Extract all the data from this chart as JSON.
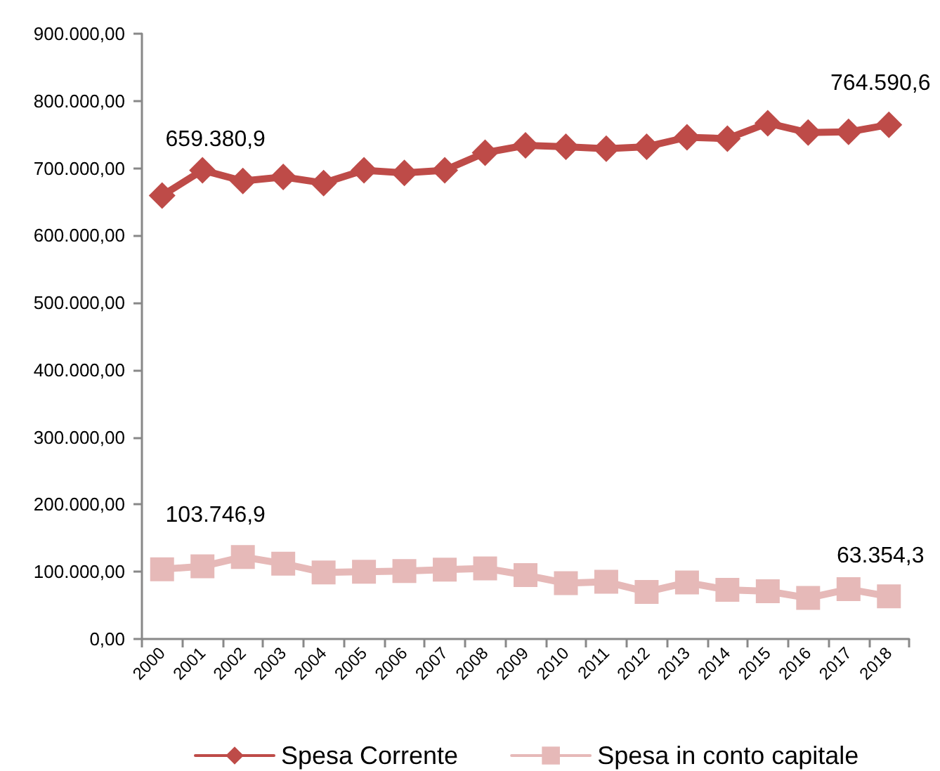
{
  "chart_data": {
    "type": "line",
    "categories": [
      "2000",
      "2001",
      "2002",
      "2003",
      "2004",
      "2005",
      "2006",
      "2007",
      "2008",
      "2009",
      "2010",
      "2011",
      "2012",
      "2013",
      "2014",
      "2015",
      "2016",
      "2017",
      "2018"
    ],
    "series": [
      {
        "name": "Spesa Corrente",
        "color": "#be4b48",
        "marker": "diamond",
        "values": [
          659380.9,
          697000,
          681000,
          687000,
          678000,
          697000,
          693000,
          697000,
          723000,
          734000,
          732000,
          729000,
          732000,
          746000,
          744000,
          767000,
          753000,
          754000,
          764590.6
        ],
        "value_labels": [
          "659.380,9",
          null,
          null,
          null,
          null,
          null,
          null,
          null,
          null,
          null,
          null,
          null,
          null,
          null,
          null,
          null,
          null,
          null,
          "764.590,6"
        ]
      },
      {
        "name": "Spesa in conto capitale",
        "color": "#e6b9b8",
        "marker": "square",
        "values": [
          103746.9,
          108000,
          122000,
          112000,
          99000,
          100000,
          101000,
          103000,
          105000,
          95000,
          83000,
          85000,
          70000,
          84000,
          73000,
          71000,
          61000,
          74000,
          63354.3
        ],
        "value_labels": [
          "103.746,9",
          null,
          null,
          null,
          null,
          null,
          null,
          null,
          null,
          null,
          null,
          null,
          null,
          null,
          null,
          null,
          null,
          null,
          "63.354,3"
        ]
      }
    ],
    "ylim": [
      0,
      900000
    ],
    "yticks": [
      {
        "value": 0,
        "label": "0,00"
      },
      {
        "value": 100000,
        "label": "100.000,00"
      },
      {
        "value": 200000,
        "label": "200.000,00"
      },
      {
        "value": 300000,
        "label": "300.000,00"
      },
      {
        "value": 400000,
        "label": "400.000,00"
      },
      {
        "value": 500000,
        "label": "500.000,00"
      },
      {
        "value": 600000,
        "label": "600.000,00"
      },
      {
        "value": 700000,
        "label": "700.000,00"
      },
      {
        "value": 800000,
        "label": "800.000,00"
      },
      {
        "value": 900000,
        "label": "900.000,00"
      }
    ],
    "grid": false,
    "legend": "bottom"
  }
}
